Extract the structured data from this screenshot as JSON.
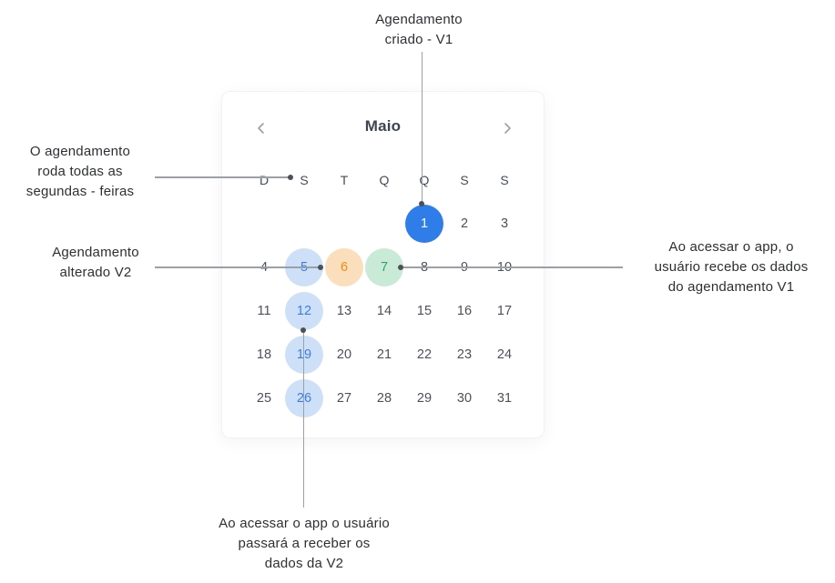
{
  "annotations": {
    "top": {
      "lines": [
        "Agendamento",
        "criado - V1"
      ]
    },
    "left_schedule": {
      "lines": [
        "O agendamento",
        "roda todas as",
        "segundas - feiras"
      ]
    },
    "left_altered": {
      "lines": [
        "Agendamento",
        "alterado V2"
      ]
    },
    "right": {
      "lines": [
        "Ao acessar o app, o",
        "usuário recebe os dados",
        "do agendamento V1"
      ]
    },
    "bottom": {
      "lines": [
        "Ao acessar o app o usuário",
        "passará a receber os",
        "dados da V2"
      ]
    }
  },
  "calendar": {
    "month_label": "Maio",
    "nav": {
      "prev_icon": "chevron-left",
      "next_icon": "chevron-right"
    },
    "day_headers": [
      "D",
      "S",
      "T",
      "Q",
      "Q",
      "S",
      "S"
    ],
    "weeks": [
      [
        "",
        "",
        "",
        "",
        "1",
        "2",
        "3"
      ],
      [
        "4",
        "5",
        "6",
        "7",
        "8",
        "9",
        "10"
      ],
      [
        "11",
        "12",
        "13",
        "14",
        "15",
        "16",
        "17"
      ],
      [
        "18",
        "19",
        "20",
        "21",
        "22",
        "23",
        "24"
      ],
      [
        "25",
        "26",
        "27",
        "28",
        "29",
        "30",
        "31"
      ]
    ],
    "highlights": {
      "1": "primary",
      "5": "blue",
      "6": "orange",
      "7": "green",
      "12": "blue",
      "19": "blue",
      "26": "blue"
    },
    "colors": {
      "primary": "#2e7de9",
      "blue_bg": "#cde0f8",
      "blue_text": "#3c7de9",
      "orange_bg": "#fbdfbc",
      "orange_text": "#f18a12",
      "green_bg": "#c9ead7",
      "green_text": "#2ba467",
      "line": "#9aa0a6",
      "dot": "#4d5156"
    }
  }
}
